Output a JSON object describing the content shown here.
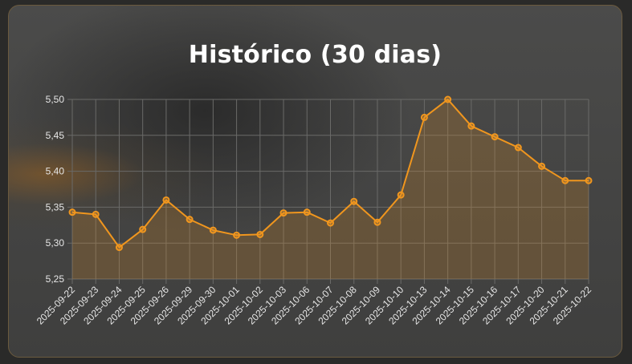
{
  "chart_data": {
    "type": "line",
    "title": "Histórico (30 dias)",
    "xlabel": "",
    "ylabel": "",
    "ylim": [
      5.25,
      5.5
    ],
    "yticks": [
      "5,50",
      "5,45",
      "5,40",
      "5,35",
      "5,30",
      "5,25"
    ],
    "ytick_values": [
      5.5,
      5.45,
      5.4,
      5.35,
      5.3,
      5.25
    ],
    "grid": true,
    "legend": "none",
    "categories": [
      "2025-09-22",
      "2025-09-23",
      "2025-09-24",
      "2025-09-25",
      "2025-09-26",
      "2025-09-29",
      "2025-09-30",
      "2025-10-01",
      "2025-10-02",
      "2025-10-03",
      "2025-10-06",
      "2025-10-07",
      "2025-10-08",
      "2025-10-09",
      "2025-10-10",
      "2025-10-13",
      "2025-10-14",
      "2025-10-15",
      "2025-10-16",
      "2025-10-17",
      "2025-10-20",
      "2025-10-21",
      "2025-10-22"
    ],
    "series": [
      {
        "values": [
          5.343,
          5.34,
          5.294,
          5.319,
          5.36,
          5.333,
          5.318,
          5.311,
          5.312,
          5.342,
          5.343,
          5.328,
          5.358,
          5.329,
          5.367,
          5.475,
          5.5,
          5.463,
          5.448,
          5.433,
          5.407,
          5.387,
          5.387
        ],
        "color": "#f0961e",
        "fill": "rgba(240,150,30,0.2)"
      }
    ]
  },
  "colors": {
    "line": "#f0961e",
    "grid": "#6a6a68",
    "text": "#e6e6e6"
  }
}
